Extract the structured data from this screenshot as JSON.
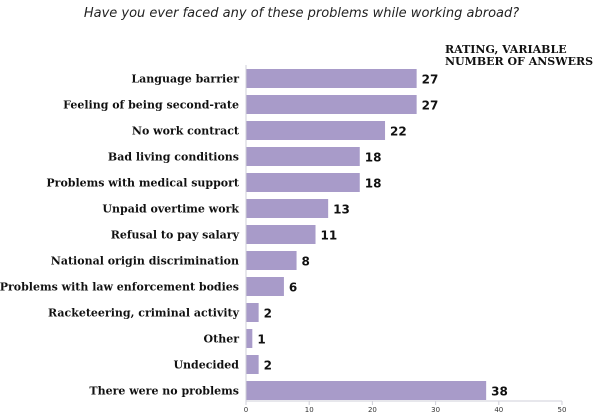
{
  "chart_data": {
    "type": "bar",
    "orientation": "horizontal",
    "title": "Have you ever faced any of these problems while working abroad?",
    "note": "RATING, VARIABLE NUMBER OF ANSWERS",
    "categories": [
      "Language barrier",
      "Feeling of being second-rate",
      "No work contract",
      "Bad living conditions",
      "Problems with medical support",
      "Unpaid overtime work",
      "Refusal to pay salary",
      "National origin discrimination",
      "Problems with law enforcement bodies",
      "Racketeering, criminal activity",
      "Other",
      "Undecided",
      "There were no problems"
    ],
    "values": [
      27,
      27,
      22,
      18,
      18,
      13,
      11,
      8,
      6,
      2,
      1,
      2,
      38
    ],
    "xlim": [
      0,
      50
    ],
    "xticks": [
      "0",
      "10",
      "20",
      "30",
      "40",
      "50"
    ],
    "bar_color": "#a89bc9",
    "grid": false
  }
}
